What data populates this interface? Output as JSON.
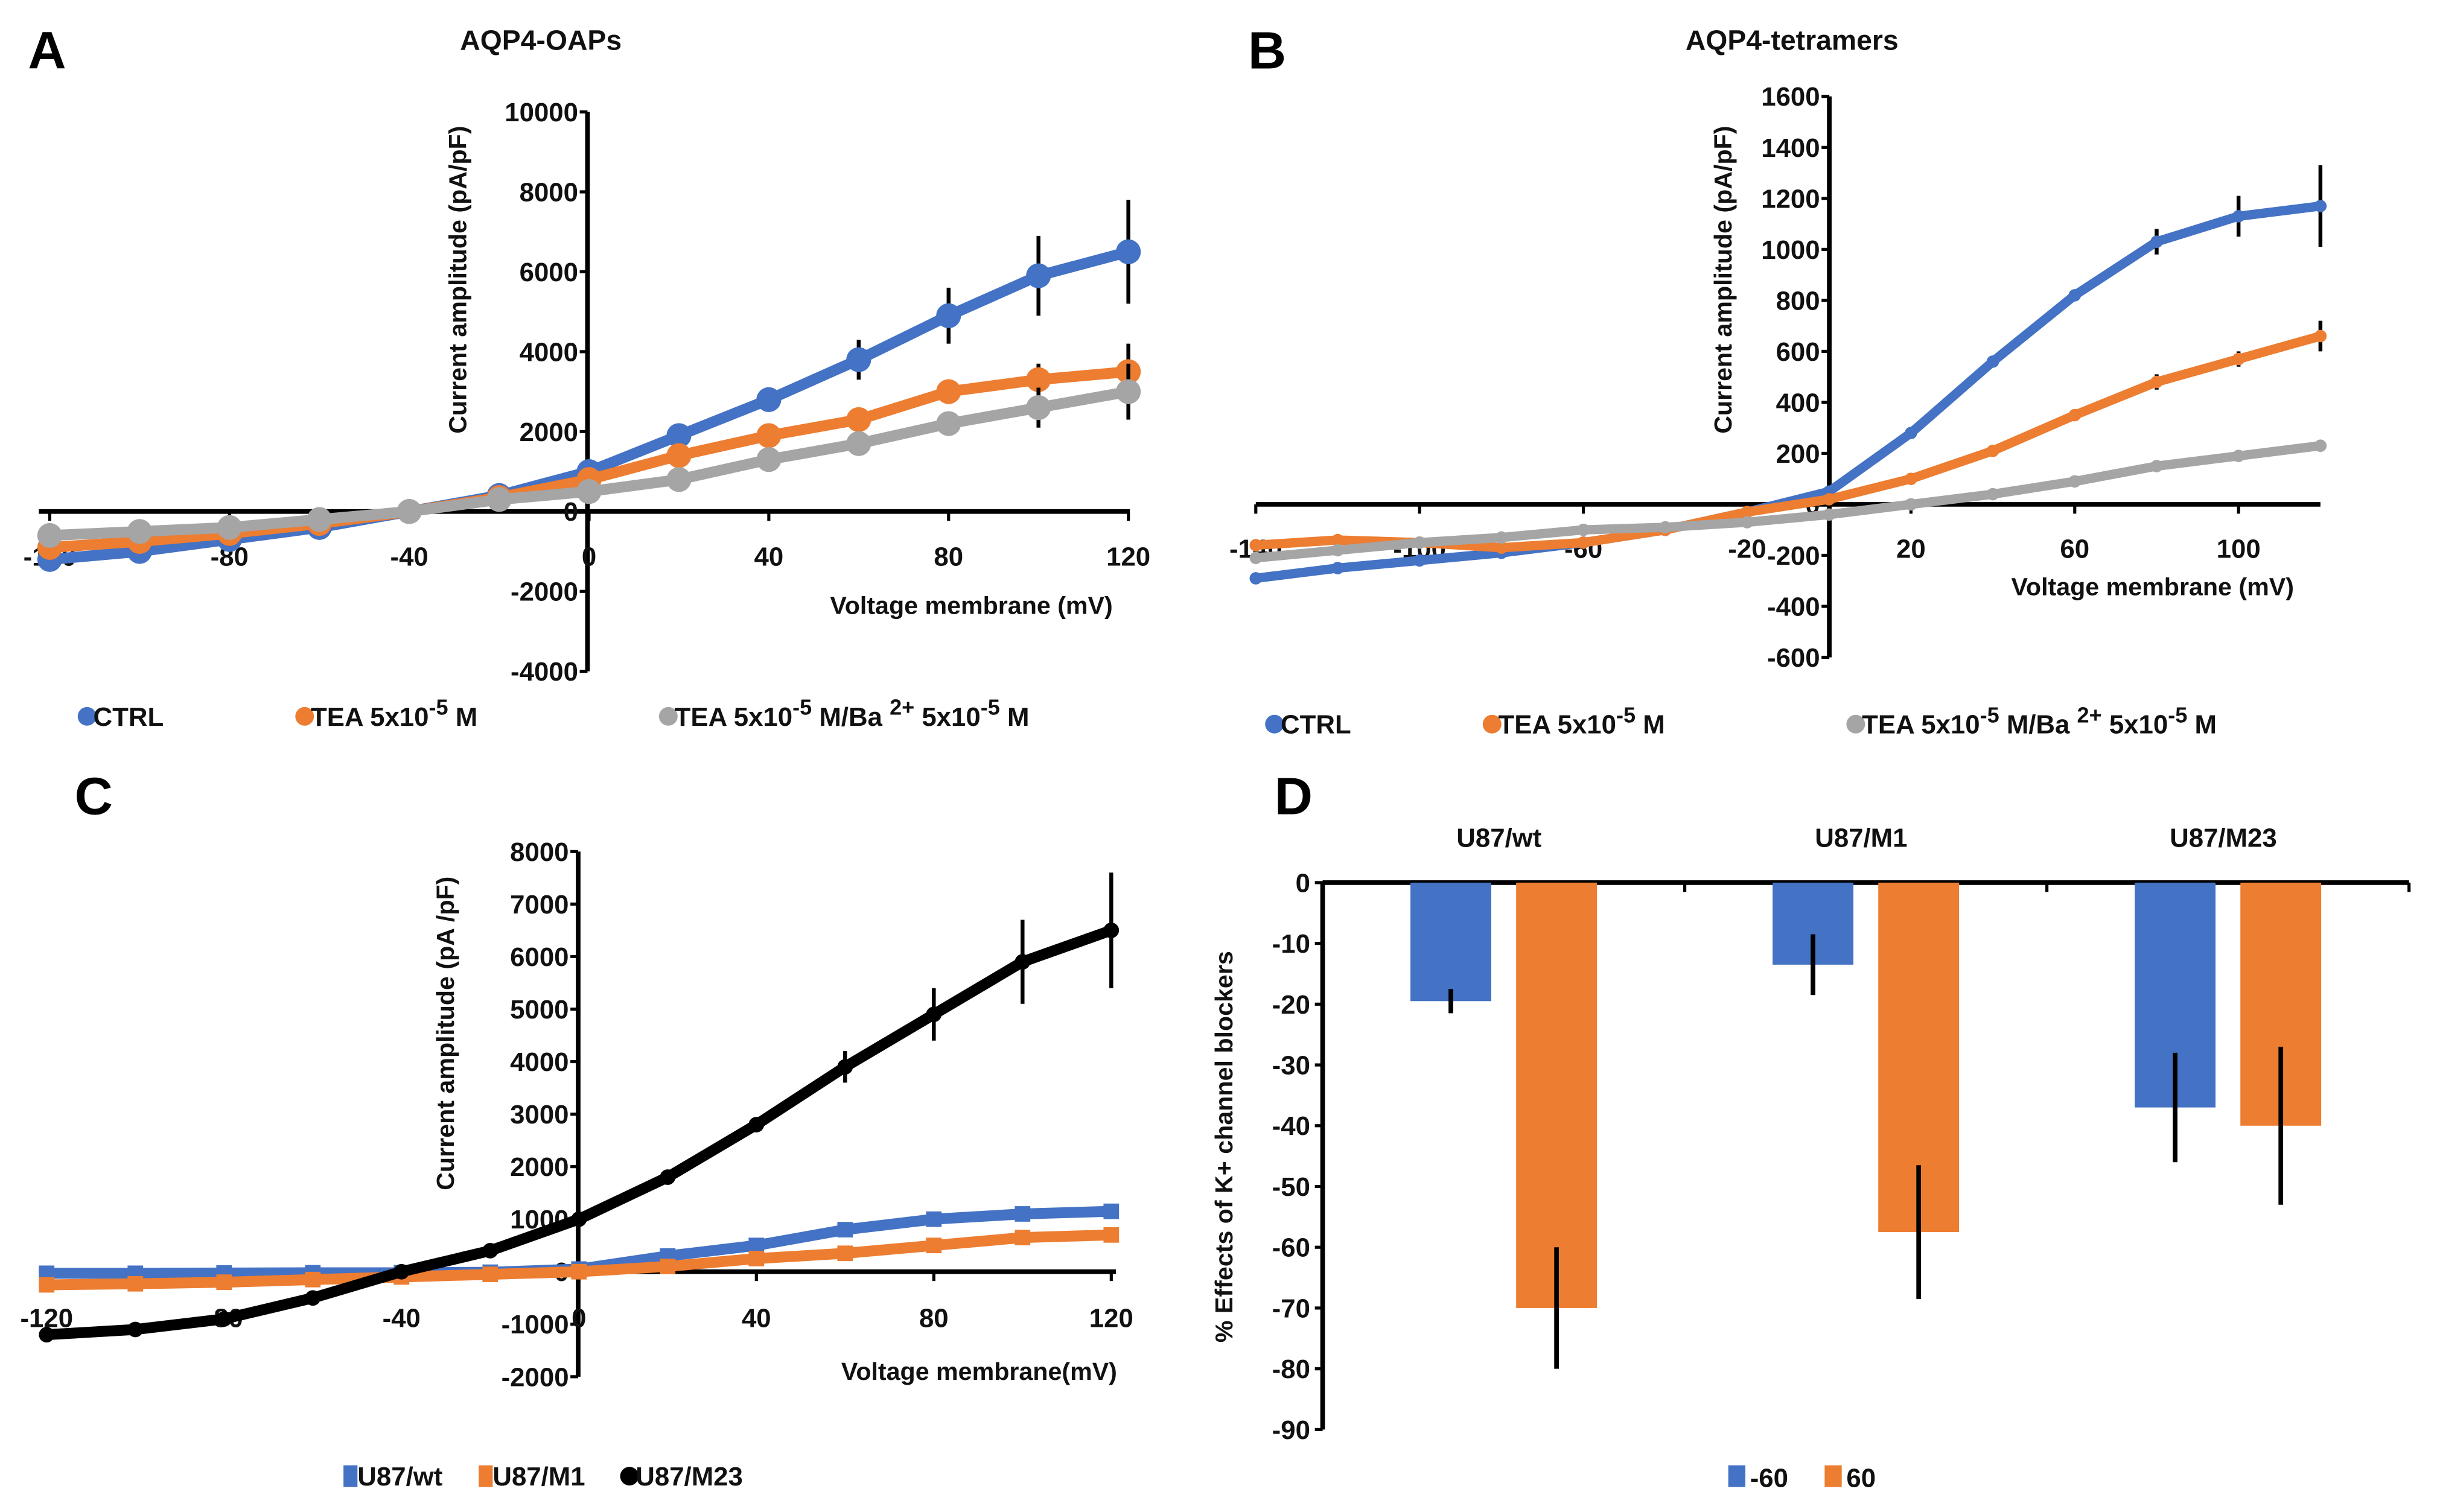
{
  "chart_data": [
    {
      "panel": "A",
      "type": "line",
      "title": "AQP4-OAPs",
      "xlabel": "Voltage membrane (mV)",
      "ylabel": "Current amplitude (pA/pF)",
      "xlim": [
        -120,
        120
      ],
      "ylim": [
        -4000,
        10000
      ],
      "xticks": [
        -120,
        -80,
        -40,
        0,
        40,
        80,
        120
      ],
      "yticks": [
        -4000,
        -2000,
        0,
        2000,
        4000,
        6000,
        8000,
        10000
      ],
      "x": [
        -120,
        -100,
        -80,
        -60,
        -40,
        -20,
        0,
        20,
        40,
        60,
        80,
        100,
        120
      ],
      "legend_position": "bottom",
      "series": [
        {
          "name": "CTRL",
          "legend": [
            {
              "t": "CTRL"
            }
          ],
          "color": "#4472C4",
          "marker": "circle",
          "values": [
            -1200,
            -1000,
            -700,
            -400,
            0,
            400,
            1000,
            1900,
            2800,
            3800,
            4900,
            5900,
            6500
          ],
          "errors": [
            0,
            0,
            0,
            0,
            0,
            0,
            0,
            0,
            0,
            500,
            700,
            1000,
            1300
          ]
        },
        {
          "name": "TEA 5x10-5 M",
          "legend": [
            {
              "t": "TEA 5x10"
            },
            {
              "t": "-5",
              "sup": true
            },
            {
              "t": " M"
            }
          ],
          "color": "#ED7D31",
          "marker": "circle",
          "values": [
            -900,
            -750,
            -550,
            -300,
            0,
            350,
            800,
            1400,
            1900,
            2300,
            3000,
            3300,
            3500
          ],
          "errors": [
            0,
            0,
            0,
            0,
            0,
            0,
            0,
            0,
            0,
            0,
            300,
            400,
            700
          ]
        },
        {
          "name": "TEA 5x10-5 M/Ba 2+5x10-5 M",
          "legend": [
            {
              "t": "TEA 5x10"
            },
            {
              "t": "-5",
              "sup": true
            },
            {
              "t": " M/Ba "
            },
            {
              "t": "2+",
              "sup": true
            },
            {
              "t": "5x10"
            },
            {
              "t": "-5",
              "sup": true
            },
            {
              "t": " M"
            }
          ],
          "color": "#A5A5A5",
          "marker": "circle",
          "values": [
            -600,
            -500,
            -400,
            -200,
            0,
            300,
            500,
            800,
            1300,
            1700,
            2200,
            2600,
            3000
          ],
          "errors": [
            0,
            0,
            0,
            0,
            0,
            0,
            0,
            0,
            0,
            0,
            0,
            500,
            700
          ]
        }
      ]
    },
    {
      "panel": "B",
      "type": "line",
      "title": "AQP4-tetramers",
      "xlabel": "Voltage membrane (mV)",
      "ylabel": "Current amplitude (pA/pF)",
      "xlim": [
        -140,
        120
      ],
      "ylim": [
        -600,
        1600
      ],
      "xticks": [
        -140,
        -100,
        -60,
        -20,
        20,
        60,
        100
      ],
      "yticks": [
        -600,
        -400,
        -200,
        0,
        200,
        400,
        600,
        800,
        1000,
        1200,
        1400,
        1600
      ],
      "x": [
        -140,
        -120,
        -100,
        -80,
        -60,
        -40,
        -20,
        0,
        20,
        40,
        60,
        80,
        100,
        120
      ],
      "legend_position": "bottom",
      "series": [
        {
          "name": "CTRL",
          "legend": [
            {
              "t": "CTRL"
            }
          ],
          "color": "#4472C4",
          "marker": "dot",
          "values": [
            -290,
            -250,
            -220,
            -190,
            -150,
            -100,
            -30,
            50,
            280,
            560,
            820,
            1030,
            1130,
            1170
          ],
          "errors": [
            0,
            0,
            0,
            0,
            0,
            0,
            0,
            0,
            0,
            0,
            0,
            50,
            80,
            160
          ]
        },
        {
          "name": "TEA 5x10-5 M",
          "legend": [
            {
              "t": "TEA 5x10"
            },
            {
              "t": "-5",
              "sup": true
            },
            {
              "t": " M"
            }
          ],
          "color": "#ED7D31",
          "marker": "dot",
          "values": [
            -160,
            -140,
            -150,
            -170,
            -150,
            -100,
            -30,
            20,
            100,
            210,
            350,
            480,
            570,
            660
          ],
          "errors": [
            0,
            0,
            0,
            0,
            0,
            0,
            0,
            0,
            0,
            0,
            0,
            30,
            30,
            60
          ]
        },
        {
          "name": "TEA 5x10-5 M/Ba 2+5x10-5 M",
          "legend": [
            {
              "t": "TEA 5x10"
            },
            {
              "t": "-5",
              "sup": true
            },
            {
              "t": " M/Ba "
            },
            {
              "t": "2+",
              "sup": true
            },
            {
              "t": "5x10"
            },
            {
              "t": "-5",
              "sup": true
            },
            {
              "t": " M"
            }
          ],
          "color": "#A5A5A5",
          "marker": "dot",
          "values": [
            -210,
            -180,
            -150,
            -130,
            -100,
            -90,
            -70,
            -40,
            0,
            40,
            90,
            150,
            190,
            230
          ],
          "errors": [
            0,
            0,
            0,
            0,
            0,
            0,
            0,
            0,
            0,
            0,
            0,
            0,
            0,
            0
          ]
        }
      ]
    },
    {
      "panel": "C",
      "type": "line",
      "title": "",
      "xlabel": "Voltage membrane(mV)",
      "ylabel": "Current amplitude (pA /pF)",
      "xlim": [
        -120,
        120
      ],
      "ylim": [
        -2000,
        8000
      ],
      "xticks": [
        -120,
        -80,
        -40,
        0,
        40,
        80,
        120
      ],
      "yticks": [
        -2000,
        -1000,
        0,
        1000,
        2000,
        3000,
        4000,
        5000,
        6000,
        7000,
        8000
      ],
      "x": [
        -120,
        -100,
        -80,
        -60,
        -40,
        -20,
        0,
        20,
        40,
        60,
        80,
        100,
        120
      ],
      "legend_position": "bottom",
      "series": [
        {
          "name": "U87/wt",
          "legend": [
            {
              "t": "U87/wt"
            }
          ],
          "color": "#4472C4",
          "marker": "square",
          "values": [
            -30,
            -30,
            -25,
            -20,
            -20,
            -10,
            50,
            300,
            500,
            800,
            1000,
            1100,
            1150
          ],
          "errors": [
            0,
            0,
            0,
            0,
            0,
            0,
            0,
            0,
            0,
            0,
            0,
            0,
            0
          ]
        },
        {
          "name": "U87/M1",
          "legend": [
            {
              "t": "U87/M1"
            }
          ],
          "color": "#ED7D31",
          "marker": "square",
          "values": [
            -250,
            -230,
            -200,
            -150,
            -100,
            -50,
            0,
            100,
            250,
            350,
            500,
            650,
            700
          ],
          "errors": [
            0,
            0,
            0,
            0,
            0,
            0,
            0,
            0,
            0,
            0,
            0,
            0,
            0
          ]
        },
        {
          "name": "U87/M23",
          "legend": [
            {
              "t": "U87/M23"
            }
          ],
          "color": "#000000",
          "marker": "circle",
          "values": [
            -1200,
            -1100,
            -900,
            -500,
            0,
            400,
            1000,
            1800,
            2800,
            3900,
            4900,
            5900,
            6500
          ],
          "errors": [
            0,
            0,
            0,
            0,
            0,
            0,
            0,
            0,
            0,
            300,
            500,
            800,
            1100
          ]
        }
      ]
    },
    {
      "panel": "D",
      "type": "bar",
      "title": "",
      "xlabel": "",
      "ylabel": "% Effects of K+ channel blockers",
      "ylim": [
        -90,
        0
      ],
      "yticks": [
        -90,
        -80,
        -70,
        -60,
        -50,
        -40,
        -30,
        -20,
        -10,
        0
      ],
      "categories": [
        "U87/wt",
        "U87/M1",
        "U87/M23"
      ],
      "legend_position": "bottom",
      "series": [
        {
          "name": "-60",
          "color": "#4472C4",
          "values": [
            -19.5,
            -13.5,
            -37
          ],
          "errors": [
            2,
            5,
            9
          ]
        },
        {
          "name": "60",
          "color": "#ED7D31",
          "values": [
            -70,
            -57.5,
            -40
          ],
          "errors": [
            10,
            11,
            13
          ]
        }
      ]
    }
  ]
}
